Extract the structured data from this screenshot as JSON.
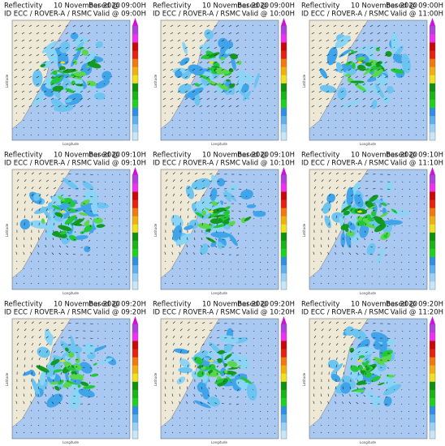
{
  "panels": [
    {
      "title": "Reflectivity",
      "date": "10 November 2020",
      "based": "Based @ 09:00H",
      "source": "ID ECC / ROVER-A / RSMC",
      "valid": "Valid @ 09:00H",
      "x_label": "Longitude",
      "y_label": "Latitude"
    },
    {
      "title": "Reflectivity",
      "date": "10 November 2020",
      "based": "Based @ 09:00H",
      "source": "ID ECC / ROVER-A / RSMC",
      "valid": "Valid @ 10:00H",
      "x_label": "Longitude",
      "y_label": "Latitude"
    },
    {
      "title": "Reflectivity",
      "date": "10 November 2020",
      "based": "Based @ 09:00H",
      "source": "ID ECC / ROVER-A / RSMC",
      "valid": "Valid @ 11:00H",
      "x_label": "Longitude",
      "y_label": "Latitude"
    },
    {
      "title": "Reflectivity",
      "date": "10 November 2020",
      "based": "Based @ 09:10H",
      "source": "ID ECC / ROVER-A / RSMC",
      "valid": "Valid @ 09:10H",
      "x_label": "Longitude",
      "y_label": "Latitude"
    },
    {
      "title": "Reflectivity",
      "date": "10 November 2020",
      "based": "Based @ 09:10H",
      "source": "ID ECC / ROVER-A / RSMC",
      "valid": "Valid @ 10:10H",
      "x_label": "Longitude",
      "y_label": "Latitude"
    },
    {
      "title": "Reflectivity",
      "date": "10 November 2020",
      "based": "Based @ 09:10H",
      "source": "ID ECC / ROVER-A / RSMC",
      "valid": "Valid @ 11:10H",
      "x_label": "Longitude",
      "y_label": "Latitude"
    },
    {
      "title": "Reflectivity",
      "date": "10 November 2020",
      "based": "Based @ 09:20H",
      "source": "ID ECC / ROVER-A / RSMC",
      "valid": "Valid @ 09:20H",
      "x_label": "Longitude",
      "y_label": "Latitude"
    },
    {
      "title": "Reflectivity",
      "date": "10 November 2020",
      "based": "Based @ 09:20H",
      "source": "ID ECC / ROVER-A / RSMC",
      "valid": "Valid @ 10:20H",
      "x_label": "Longitude",
      "y_label": "Latitude"
    },
    {
      "title": "Reflectivity",
      "date": "10 November 2020",
      "based": "Based @ 09:20H",
      "source": "ID ECC / ROVER-A / RSMC",
      "valid": "Valid @ 11:20H",
      "x_label": "Longitude",
      "y_label": "Latitude"
    }
  ]
}
